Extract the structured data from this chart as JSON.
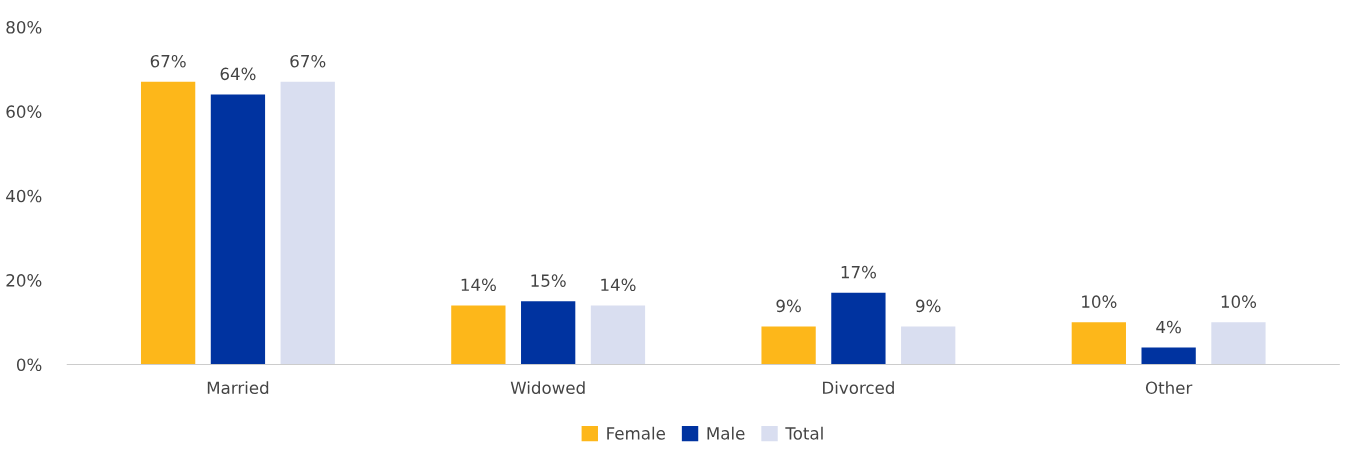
{
  "chart_data": {
    "type": "bar",
    "categories": [
      "Married",
      "Widowed",
      "Divorced",
      "Other"
    ],
    "series": [
      {
        "name": "Female",
        "color": "#fdb71a",
        "values": [
          67,
          14,
          9,
          10
        ],
        "value_labels": [
          "67%",
          "14%",
          "9%",
          "10%"
        ]
      },
      {
        "name": "Male",
        "color": "#0033a0",
        "values": [
          64,
          15,
          17,
          4
        ],
        "value_labels": [
          "64%",
          "15%",
          "17%",
          "4%"
        ]
      },
      {
        "name": "Total",
        "color": "#d9def0",
        "values": [
          67,
          14,
          9,
          10
        ],
        "value_labels": [
          "67%",
          "14%",
          "9%",
          "10%"
        ]
      }
    ],
    "ylim": [
      0,
      80
    ],
    "yticks": [
      {
        "value": 0,
        "label": "0%"
      },
      {
        "value": 20,
        "label": "20%"
      },
      {
        "value": 40,
        "label": "40%"
      },
      {
        "value": 60,
        "label": "60%"
      },
      {
        "value": 80,
        "label": "80%"
      }
    ],
    "grid": false,
    "legend": "bottom"
  }
}
